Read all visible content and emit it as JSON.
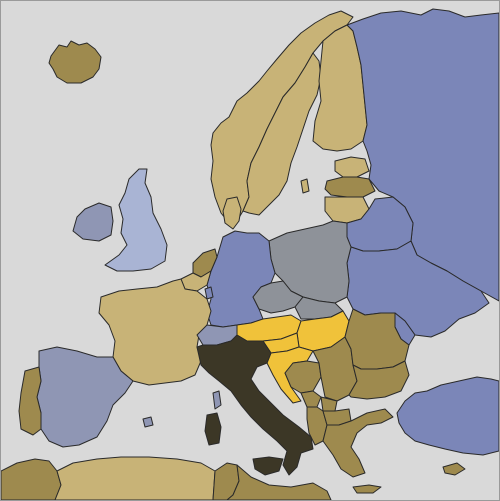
{
  "map": {
    "background_color": "#d9d9d9",
    "sea_color": "#d9d9d9",
    "border_color": "#2a2a2a",
    "palette": {
      "tan": "#c8b377",
      "gold": "#9e8a4e",
      "slate_blue": "#7b86b8",
      "light_blue": "#a9b4d4",
      "grey_blue": "#8f96b4",
      "grey": "#8e9299",
      "yellow": "#f0c23a",
      "dark": "#3c3726"
    },
    "countries": [
      {
        "name": "iceland",
        "color": "#9e8a4e"
      },
      {
        "name": "norway",
        "color": "#c8b377"
      },
      {
        "name": "sweden",
        "color": "#c8b377"
      },
      {
        "name": "finland",
        "color": "#c8b377"
      },
      {
        "name": "russia",
        "color": "#7b86b8"
      },
      {
        "name": "estonia",
        "color": "#c8b377"
      },
      {
        "name": "latvia",
        "color": "#9e8a4e"
      },
      {
        "name": "lithuania",
        "color": "#c8b377"
      },
      {
        "name": "belarus",
        "color": "#7b86b8"
      },
      {
        "name": "ukraine",
        "color": "#7b86b8"
      },
      {
        "name": "moldova",
        "color": "#7b86b8"
      },
      {
        "name": "poland",
        "color": "#8e9299"
      },
      {
        "name": "germany",
        "color": "#7b86b8"
      },
      {
        "name": "denmark",
        "color": "#c8b377"
      },
      {
        "name": "netherlands",
        "color": "#9e8a4e"
      },
      {
        "name": "belgium",
        "color": "#c8b377"
      },
      {
        "name": "luxembourg",
        "color": "#7b86b8"
      },
      {
        "name": "france",
        "color": "#c8b377"
      },
      {
        "name": "switzerland",
        "color": "#8f96b4"
      },
      {
        "name": "austria",
        "color": "#f0c23a"
      },
      {
        "name": "czechia",
        "color": "#8e9299"
      },
      {
        "name": "slovakia",
        "color": "#8e9299"
      },
      {
        "name": "hungary",
        "color": "#f0c23a"
      },
      {
        "name": "slovenia",
        "color": "#f0c23a"
      },
      {
        "name": "croatia",
        "color": "#f0c23a"
      },
      {
        "name": "bosnia",
        "color": "#9e8a4e"
      },
      {
        "name": "serbia",
        "color": "#9e8a4e"
      },
      {
        "name": "montenegro",
        "color": "#9e8a4e"
      },
      {
        "name": "albania",
        "color": "#9e8a4e"
      },
      {
        "name": "north-macedonia",
        "color": "#9e8a4e"
      },
      {
        "name": "kosovo",
        "color": "#9e8a4e"
      },
      {
        "name": "romania",
        "color": "#9e8a4e"
      },
      {
        "name": "bulgaria",
        "color": "#9e8a4e"
      },
      {
        "name": "greece",
        "color": "#9e8a4e"
      },
      {
        "name": "turkey",
        "color": "#7b86b8"
      },
      {
        "name": "cyprus",
        "color": "#9e8a4e"
      },
      {
        "name": "italy",
        "color": "#3c3726"
      },
      {
        "name": "sardinia",
        "color": "#3c3726"
      },
      {
        "name": "sicily",
        "color": "#3c3726"
      },
      {
        "name": "corsica",
        "color": "#8f96b4"
      },
      {
        "name": "spain",
        "color": "#8f96b4"
      },
      {
        "name": "portugal",
        "color": "#9e8a4e"
      },
      {
        "name": "united-kingdom",
        "color": "#a9b4d4"
      },
      {
        "name": "ireland",
        "color": "#8f96b4"
      },
      {
        "name": "morocco",
        "color": "#9e8a4e"
      },
      {
        "name": "algeria",
        "color": "#c8b377"
      },
      {
        "name": "tunisia",
        "color": "#9e8a4e"
      },
      {
        "name": "libya",
        "color": "#9e8a4e"
      }
    ]
  }
}
